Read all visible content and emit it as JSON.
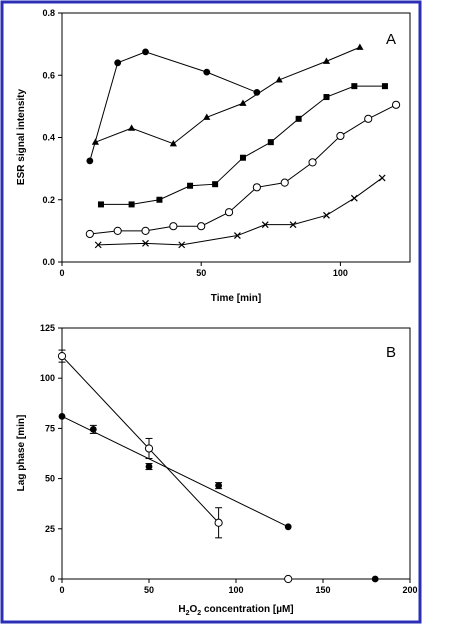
{
  "chart_data": [
    {
      "type": "line",
      "panel_label": "A",
      "xlabel": "Time [min]",
      "ylabel": "ESR signal intensity",
      "xlim": [
        0,
        125
      ],
      "ylim": [
        0,
        0.8
      ],
      "xticks": [
        "0",
        "50",
        "100"
      ],
      "xtick_values": [
        0,
        50,
        100
      ],
      "yticks": [
        "0.0",
        "0.2",
        "0.4",
        "0.6",
        "0.8"
      ],
      "ytick_values": [
        0,
        0.2,
        0.4,
        0.6,
        0.8
      ],
      "series": [
        {
          "marker": "filled-circle",
          "x": [
            10,
            20,
            30,
            52,
            70
          ],
          "y": [
            0.325,
            0.64,
            0.675,
            0.61,
            0.545
          ]
        },
        {
          "marker": "filled-triangle",
          "x": [
            12,
            25,
            40,
            52,
            65,
            78,
            95,
            107
          ],
          "y": [
            0.385,
            0.43,
            0.38,
            0.465,
            0.51,
            0.585,
            0.645,
            0.69
          ]
        },
        {
          "marker": "filled-square",
          "x": [
            14,
            25,
            35,
            46,
            55,
            65,
            75,
            85,
            95,
            105,
            116
          ],
          "y": [
            0.185,
            0.185,
            0.2,
            0.245,
            0.25,
            0.335,
            0.385,
            0.46,
            0.53,
            0.565,
            0.565
          ]
        },
        {
          "marker": "open-circle",
          "x": [
            10,
            20,
            30,
            40,
            50,
            60,
            70,
            80,
            90,
            100,
            110,
            120
          ],
          "y": [
            0.09,
            0.1,
            0.1,
            0.115,
            0.115,
            0.16,
            0.24,
            0.255,
            0.32,
            0.405,
            0.46,
            0.505
          ]
        },
        {
          "marker": "x",
          "x": [
            13,
            30,
            43,
            63,
            73,
            83,
            95,
            105,
            115
          ],
          "y": [
            0.055,
            0.06,
            0.055,
            0.085,
            0.12,
            0.12,
            0.15,
            0.205,
            0.27
          ]
        }
      ]
    },
    {
      "type": "scatter",
      "panel_label": "B",
      "xlabel_prefix": "H",
      "xlabel_sub1": "2",
      "xlabel_mid": "O",
      "xlabel_sub2": "2",
      "xlabel_suffix": " concentration [µM]",
      "ylabel": "Lag phase [min]",
      "xlim": [
        0,
        200
      ],
      "ylim": [
        0,
        125
      ],
      "xticks": [
        "0",
        "50",
        "100",
        "150",
        "200"
      ],
      "xtick_values": [
        0,
        50,
        100,
        150,
        200
      ],
      "yticks": [
        "0",
        "25",
        "50",
        "75",
        "100",
        "125"
      ],
      "ytick_values": [
        0,
        25,
        50,
        75,
        100,
        125
      ],
      "series": [
        {
          "marker": "filled-circle",
          "x": [
            0,
            18,
            50,
            90,
            130,
            180
          ],
          "y": [
            81,
            74.5,
            56,
            46.5,
            26,
            0
          ],
          "err": [
            0,
            2,
            1.5,
            1.5,
            0,
            0
          ],
          "fit_x": [
            0,
            130
          ],
          "fit_y": [
            81,
            26
          ]
        },
        {
          "marker": "open-circle",
          "x": [
            0,
            50,
            90,
            130
          ],
          "y": [
            111,
            65,
            28,
            0
          ],
          "err": [
            3,
            5,
            7.5,
            0
          ],
          "fit_x": [
            0,
            90
          ],
          "fit_y": [
            111,
            28
          ]
        }
      ]
    }
  ]
}
